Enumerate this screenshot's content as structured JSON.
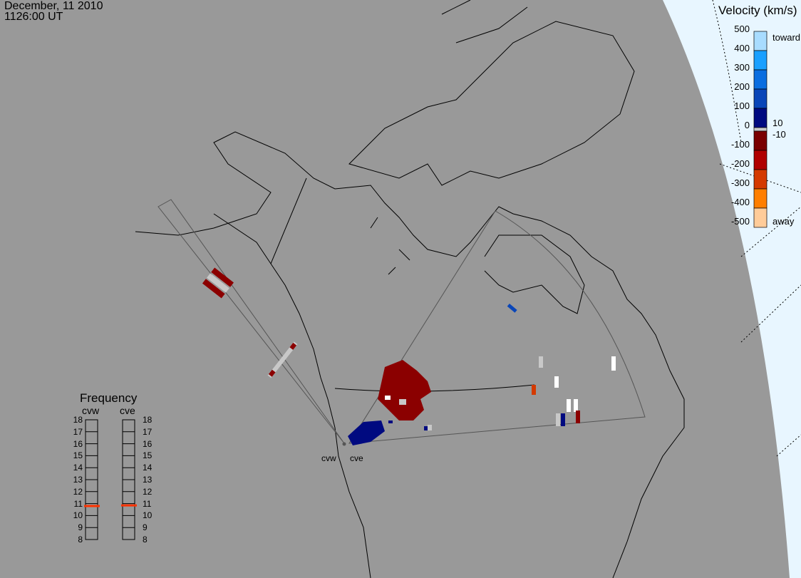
{
  "header": {
    "date": "December, 11 2010",
    "time": "1126:00 UT"
  },
  "sites": [
    {
      "name": "cvw",
      "frequency_mhz": 10.8
    },
    {
      "name": "cve",
      "frequency_mhz": 10.85
    }
  ],
  "velocity_legend": {
    "title": "Velocity (km/s)",
    "ticks": [
      "500",
      "400",
      "300",
      "200",
      "100",
      "0",
      "-100",
      "-200",
      "-300",
      "-400",
      "-500"
    ],
    "toward_label": "toward",
    "away_label": "away",
    "pos_threshold": "10",
    "neg_threshold": "-10",
    "colors_toward": [
      "#a8dcff",
      "#1aa0ff",
      "#0a6ee0",
      "#0a46b8",
      "#000a80"
    ],
    "colors_away": [
      "#7a0000",
      "#b00000",
      "#d43a00",
      "#ff7f00",
      "#ffcc99"
    ],
    "ground_scatter_color": "#c8c8c8"
  },
  "frequency_legend": {
    "title": "Frequency",
    "ticks": [
      "18",
      "17",
      "16",
      "15",
      "14",
      "13",
      "12",
      "11",
      "10",
      "9",
      "8"
    ],
    "marker_color": "#ff3300"
  }
}
